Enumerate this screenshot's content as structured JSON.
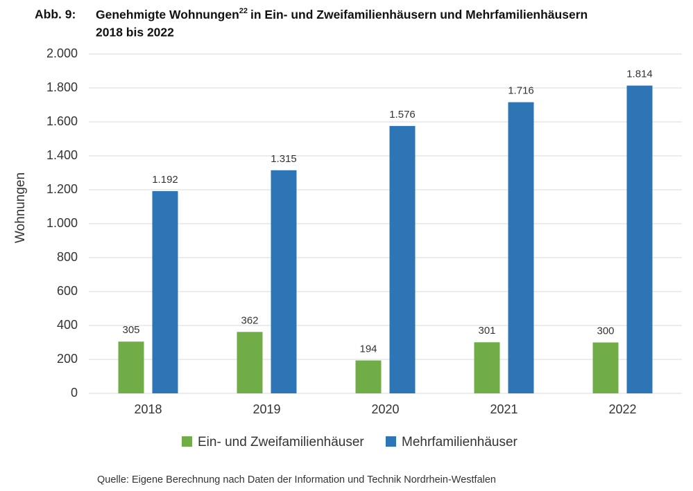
{
  "chart_data": {
    "type": "bar",
    "title_prefix": "Abb. 9:",
    "title": "Genehmigte Wohnungen",
    "title_footnote": "22",
    "title_rest": "in Ein- und Zweifamilienhäusern und Mehrfamilienhäusern",
    "title_line2": "2018 bis 2022",
    "y_label": "Wohnungen",
    "source": "Quelle: Eigene Berechnung nach Daten der Information und Technik Nordrhein-Westfalen",
    "categories": [
      "2018",
      "2019",
      "2020",
      "2021",
      "2022"
    ],
    "series": [
      {
        "name": "Ein- und Zweifamilienhäuser",
        "color": "#70ad47",
        "values": [
          305,
          362,
          194,
          301,
          300
        ]
      },
      {
        "name": "Mehrfamilienhäuser",
        "color": "#2e75b6",
        "values": [
          1192,
          1315,
          1576,
          1716,
          1814
        ],
        "value_labels": [
          "1.192",
          "1.315",
          "1.576",
          "1.716",
          "1.814"
        ]
      }
    ],
    "ylim": [
      0,
      2000
    ],
    "yticks": [
      0,
      200,
      400,
      600,
      800,
      {
        "value": 1000,
        "label": "1.000"
      },
      {
        "value": 1200,
        "label": "1.200"
      },
      {
        "value": 1400,
        "label": "1.400"
      },
      {
        "value": 1600,
        "label": "1.600"
      },
      {
        "value": 1800,
        "label": "1.800"
      },
      {
        "value": 2000,
        "label": "2.000"
      }
    ],
    "grid": true,
    "legend": "bottom"
  }
}
